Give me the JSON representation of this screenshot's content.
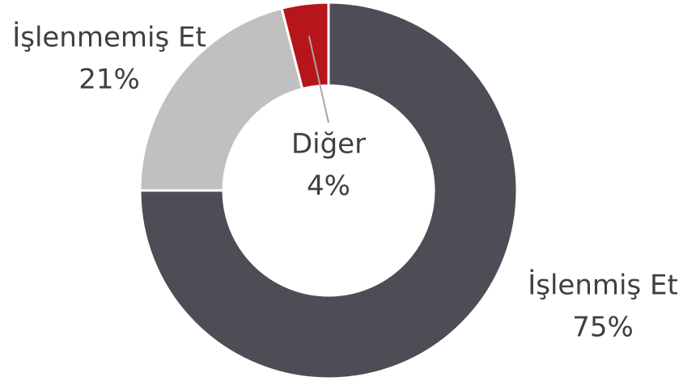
{
  "chart_data": {
    "type": "donut",
    "categories": [
      "İşlenmiş Et",
      "İşlenmemiş Et",
      "Diğer"
    ],
    "values": [
      75,
      21,
      4
    ],
    "value_labels": [
      "75%",
      "21%",
      "4%"
    ],
    "colors": [
      "#4d4d55",
      "#c0c0c0",
      "#b5151b"
    ]
  }
}
